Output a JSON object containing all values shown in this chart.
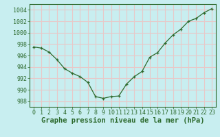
{
  "x": [
    0,
    1,
    2,
    3,
    4,
    5,
    6,
    7,
    8,
    9,
    10,
    11,
    12,
    13,
    14,
    15,
    16,
    17,
    18,
    19,
    20,
    21,
    22,
    23
  ],
  "y": [
    997.5,
    997.3,
    996.6,
    995.3,
    993.7,
    992.9,
    992.3,
    991.3,
    988.8,
    988.5,
    988.8,
    988.9,
    991.0,
    992.3,
    993.2,
    995.7,
    996.5,
    998.2,
    999.6,
    1000.6,
    1002.0,
    1002.5,
    1003.5,
    1004.2
  ],
  "line_color": "#2d6a2d",
  "marker": "+",
  "bg_color": "#c8eef0",
  "grid_color": "#e8c8c8",
  "title": "Graphe pression niveau de la mer (hPa)",
  "ylim": [
    987,
    1005
  ],
  "xlim": [
    -0.5,
    23.5
  ],
  "yticks": [
    988,
    990,
    992,
    994,
    996,
    998,
    1000,
    1002,
    1004
  ],
  "xticks": [
    0,
    1,
    2,
    3,
    4,
    5,
    6,
    7,
    8,
    9,
    10,
    11,
    12,
    13,
    14,
    15,
    16,
    17,
    18,
    19,
    20,
    21,
    22,
    23
  ],
  "title_fontsize": 7.5,
  "tick_fontsize": 6,
  "title_fontweight": "bold"
}
